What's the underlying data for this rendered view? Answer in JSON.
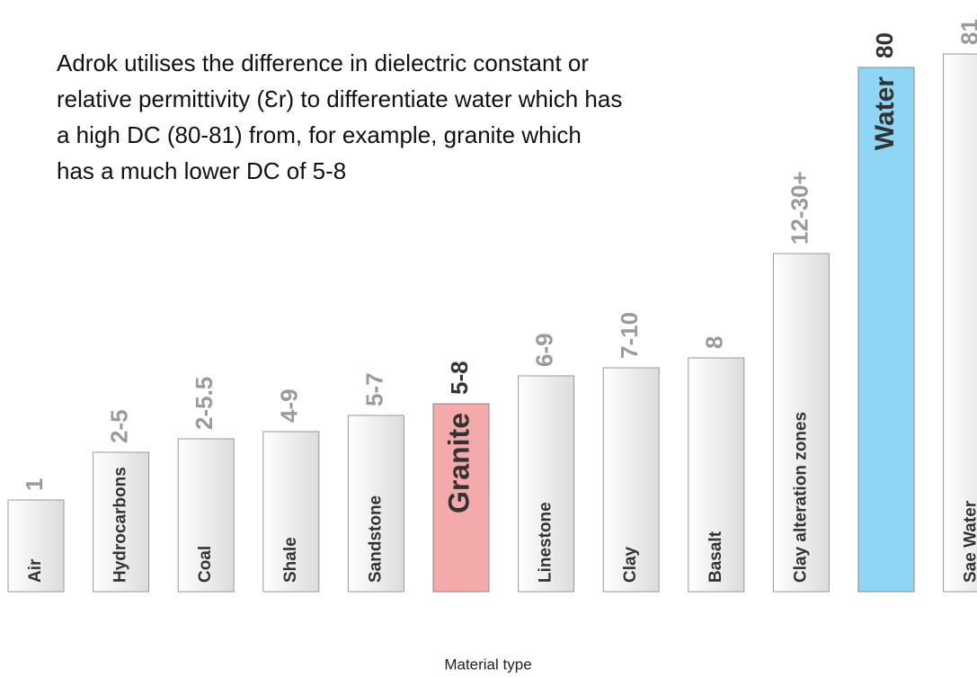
{
  "description": [
    "Adrok utilises the difference in dielectric constant or",
    "relative permittivity (Ɛr) to differentiate water which has",
    "a high DC (80-81) from, for example, granite which",
    "has a much lower DC of 5-8"
  ],
  "x_axis_label": "Material type",
  "bars": [
    {
      "name": "Air",
      "dc": "1",
      "color": "#f0f0f0"
    },
    {
      "name": "Hydrocarbons",
      "dc": "2-5",
      "color": "#f0f0f0"
    },
    {
      "name": "Coal",
      "dc": "2-5.5",
      "color": "#f0f0f0"
    },
    {
      "name": "Shale",
      "dc": "4-9",
      "color": "#f0f0f0"
    },
    {
      "name": "Sandstone",
      "dc": "5-7",
      "color": "#f0f0f0"
    },
    {
      "name": "Granite",
      "dc": "5-8",
      "color": "#f4a9ab",
      "highlight": true
    },
    {
      "name": "Linestone",
      "dc": "6-9",
      "color": "#f0f0f0"
    },
    {
      "name": "Clay",
      "dc": "7-10",
      "color": "#f0f0f0"
    },
    {
      "name": "Basalt",
      "dc": "8",
      "color": "#f0f0f0"
    },
    {
      "name": "Clay alteration zones",
      "dc": "12-30+",
      "color": "#f0f0f0"
    },
    {
      "name": "Water",
      "dc": "80",
      "color": "#8fd5f5",
      "highlight": true
    },
    {
      "name": "Sae Water",
      "dc": "81",
      "color": "#f0f0f0"
    }
  ]
}
